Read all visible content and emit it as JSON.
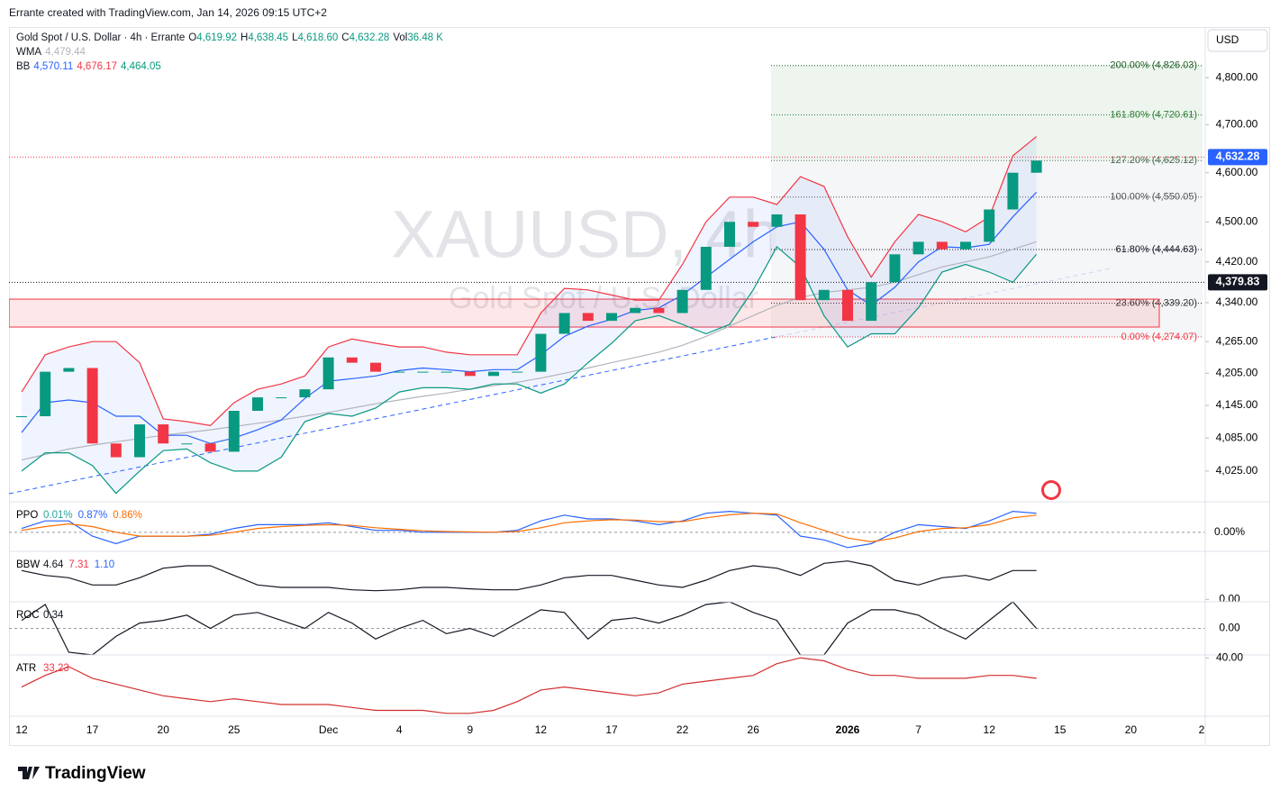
{
  "header": "Errante created with TradingView.com, Jan 14, 2026 09:15 UTC+2",
  "currency_button": "USD",
  "watermark": {
    "symbol": "XAUUSD, 4h",
    "description": "Gold Spot / U.S. Dollar"
  },
  "footer_logo": "TradingView",
  "chart_data": [
    {
      "type": "candlestick",
      "title": "Gold Spot / U.S. Dollar · 4h · Errante",
      "ohlc": [
        {
          "key": "O",
          "value": "4,619.92"
        },
        {
          "key": "H",
          "value": "4,638.45"
        },
        {
          "key": "L",
          "value": "4,618.60"
        },
        {
          "key": "C",
          "value": "4,632.28"
        },
        {
          "key": "Vol",
          "value": "36.48 K"
        }
      ],
      "categories": [
        "12",
        null,
        null,
        "17",
        null,
        null,
        "20",
        null,
        null,
        "25",
        null,
        null,
        null,
        "Dec",
        null,
        null,
        "4",
        null,
        null,
        "9",
        null,
        null,
        "12",
        null,
        null,
        "17",
        null,
        null,
        "22",
        null,
        null,
        "26",
        null,
        null,
        null,
        "2026",
        null,
        null,
        "7",
        null,
        null,
        "12",
        null,
        null,
        "15",
        null,
        null,
        "20",
        null,
        null,
        "2"
      ],
      "values": [
        4125,
        4208,
        4215,
        4075,
        4050,
        4110,
        4075,
        4075,
        4060,
        4135,
        4160,
        4160,
        4175,
        4235,
        4225,
        4208,
        4208,
        4208,
        4208,
        4200,
        4208,
        4208,
        4280,
        4320,
        4305,
        4320,
        4330,
        4320,
        4365,
        4450,
        4500,
        4490,
        4515,
        4345,
        4365,
        4305,
        4380,
        4435,
        4460,
        4445,
        4460,
        4525,
        4600,
        4625,
        null,
        null,
        null,
        null,
        null,
        null,
        null
      ],
      "color_up": "#089981",
      "color_down": "#f23645",
      "log_scale": true,
      "ylim": [
        3970,
        4910
      ],
      "yticks": [
        {
          "value": 4800,
          "label": "4,800.00"
        },
        {
          "value": 4700,
          "label": "4,700.00"
        },
        {
          "value": 4600,
          "label": "4,600.00"
        },
        {
          "value": 4500,
          "label": "4,500.00"
        },
        {
          "value": 4420,
          "label": "4,420.00"
        },
        {
          "value": 4340,
          "label": "4,340.00"
        },
        {
          "value": 4265,
          "label": "4,265.00"
        },
        {
          "value": 4205,
          "label": "4,205.00"
        },
        {
          "value": 4145,
          "label": "4,145.00"
        },
        {
          "value": 4085,
          "label": "4,085.00"
        },
        {
          "value": 4025,
          "label": "4,025.00"
        }
      ],
      "indicators": [
        {
          "name": "WMA",
          "series": [
            {
              "label": "4,479.44",
              "color": "#b2b5be",
              "values": [
                4045,
                4055,
                4065,
                4072,
                4078,
                4084,
                4090,
                4095,
                4100,
                4106,
                4112,
                4118,
                4125,
                4132,
                4140,
                4148,
                4155,
                4162,
                4168,
                4175,
                4182,
                4188,
                4196,
                4205,
                4215,
                4225,
                4235,
                4245,
                4258,
                4275,
                4295,
                4315,
                4335,
                4350,
                4360,
                4365,
                4370,
                4380,
                4395,
                4410,
                4420,
                4430,
                4445,
                4460,
                null,
                null,
                null,
                null,
                null,
                null,
                null
              ]
            }
          ]
        },
        {
          "name": "BB",
          "series": [
            {
              "label": "4,570.11",
              "color": "#2962ff",
              "values": [
                4095,
                4150,
                4155,
                4150,
                4125,
                4125,
                4090,
                4090,
                4075,
                4085,
                4100,
                4118,
                4158,
                4190,
                4195,
                4200,
                4210,
                4215,
                4212,
                4208,
                4212,
                4212,
                4240,
                4275,
                4295,
                4308,
                4325,
                4330,
                4355,
                4390,
                4425,
                4460,
                4490,
                4500,
                4445,
                4365,
                4335,
                4370,
                4420,
                4450,
                4448,
                4455,
                4510,
                4560,
                null,
                null,
                null,
                null,
                null,
                null,
                null
              ]
            },
            {
              "label": "4,676.17",
              "color": "#f23645",
              "values": [
                4170,
                4240,
                4255,
                4265,
                4265,
                4225,
                4120,
                4115,
                4108,
                4150,
                4175,
                4185,
                4200,
                4255,
                4270,
                4262,
                4255,
                4255,
                4245,
                4240,
                4240,
                4240,
                4320,
                4368,
                4365,
                4355,
                4345,
                4345,
                4415,
                4500,
                4550,
                4550,
                4535,
                4592,
                4572,
                4470,
                4390,
                4460,
                4515,
                4500,
                4480,
                4510,
                4635,
                4675,
                null,
                null,
                null,
                null,
                null,
                null,
                null
              ]
            },
            {
              "label": "4,464.05",
              "color": "#089981",
              "values": [
                4025,
                4058,
                4058,
                4035,
                3985,
                4025,
                4062,
                4065,
                4040,
                4025,
                4025,
                4050,
                4115,
                4130,
                4125,
                4140,
                4170,
                4178,
                4178,
                4175,
                4185,
                4185,
                4168,
                4185,
                4225,
                4262,
                4305,
                4315,
                4298,
                4280,
                4298,
                4365,
                4450,
                4410,
                4315,
                4255,
                4280,
                4280,
                4330,
                4400,
                4415,
                4400,
                4380,
                4435,
                null,
                null,
                null,
                null,
                null,
                null,
                null
              ]
            }
          ]
        }
      ],
      "fib": [
        {
          "value": 4826.03,
          "label": "200.00% (4,826.03)",
          "color": "#1b5e20"
        },
        {
          "value": 4720.61,
          "label": "161.80% (4,720.61)",
          "color": "#2e7d32"
        },
        {
          "value": 4625.12,
          "label": "127.20% (4,625.12)",
          "color": "#4a6b50"
        },
        {
          "value": 4550.05,
          "label": "100.00% (4,550.05)",
          "color": "#555"
        },
        {
          "value": 4444.63,
          "label": "61.80% (4,444.63)",
          "color": "#131722"
        },
        {
          "value": 4339.2,
          "label": "23.60% (4,339.20)",
          "color": "#333"
        },
        {
          "value": 4274.07,
          "label": "0.00% (4,274.07)",
          "color": "#f23645"
        }
      ],
      "zone": [
        4293,
        4347
      ],
      "price_lines": [
        {
          "value": 4632.28,
          "label": "4,632.28",
          "color": "#2962ff",
          "line_color": "#f23645"
        },
        {
          "value": 4379.83,
          "label": "4,379.83",
          "color": "#131722",
          "line_color": "#131722"
        }
      ]
    },
    {
      "type": "line",
      "name": "PPO",
      "legend": [
        {
          "label": "0.01%",
          "color": "#26a69a"
        },
        {
          "label": "0.87%",
          "color": "#2962ff"
        },
        {
          "label": "0.86%",
          "color": "#ff6d00"
        }
      ],
      "ylim": [
        -0.5,
        0.8
      ],
      "yticks": [
        {
          "value": 0,
          "label": "0.00%"
        }
      ],
      "grid": true,
      "series": [
        {
          "color": "#2962ff",
          "values": [
            0.1,
            0.3,
            0.3,
            -0.1,
            -0.3,
            -0.1,
            -0.1,
            -0.1,
            -0.05,
            0.1,
            0.2,
            0.2,
            0.2,
            0.25,
            0.15,
            0.05,
            0.05,
            0.0,
            0.0,
            0.0,
            0.0,
            0.05,
            0.3,
            0.45,
            0.35,
            0.35,
            0.3,
            0.2,
            0.3,
            0.5,
            0.55,
            0.5,
            0.45,
            -0.1,
            -0.2,
            -0.4,
            -0.3,
            0.0,
            0.2,
            0.15,
            0.1,
            0.3,
            0.55,
            0.5,
            null,
            null,
            null,
            null,
            null,
            null,
            null
          ]
        },
        {
          "color": "#ff6d00",
          "values": [
            0.05,
            0.15,
            0.22,
            0.15,
            0.0,
            -0.1,
            -0.1,
            -0.1,
            -0.08,
            0.0,
            0.1,
            0.15,
            0.18,
            0.2,
            0.18,
            0.12,
            0.08,
            0.04,
            0.02,
            0.01,
            0.0,
            0.02,
            0.12,
            0.25,
            0.3,
            0.33,
            0.32,
            0.28,
            0.28,
            0.38,
            0.46,
            0.5,
            0.48,
            0.25,
            0.05,
            -0.15,
            -0.25,
            -0.15,
            0.02,
            0.1,
            0.12,
            0.2,
            0.38,
            0.45,
            null,
            null,
            null,
            null,
            null,
            null,
            null
          ]
        }
      ]
    },
    {
      "type": "line",
      "name": "BBW",
      "legend": [
        {
          "label": "4.64",
          "color": "#131722"
        },
        {
          "label": "7.31",
          "color": "#f23645"
        },
        {
          "label": "1.10",
          "color": "#2962ff"
        }
      ],
      "ylim": [
        -0.5,
        10
      ],
      "yticks": [
        {
          "value": 0,
          "label": "0.00"
        }
      ],
      "grid": false,
      "series": [
        {
          "color": "#131722",
          "values": [
            6,
            5,
            4.5,
            3,
            3,
            4.5,
            6.5,
            7,
            7,
            5,
            3,
            2.5,
            2.5,
            2.5,
            2,
            1.8,
            2,
            2.5,
            2.5,
            2.2,
            2,
            2,
            3,
            4.5,
            5,
            5,
            4,
            3,
            2.5,
            4,
            6,
            7,
            6.5,
            5,
            7.5,
            8,
            7,
            4,
            3,
            4.5,
            5,
            4,
            6,
            6,
            null,
            null,
            null,
            null,
            null,
            null,
            null
          ]
        }
      ]
    },
    {
      "type": "line",
      "name": "ROC",
      "legend": [
        {
          "label": "0.34",
          "color": "#131722"
        }
      ],
      "ylim": [
        -1,
        1
      ],
      "yticks": [
        {
          "value": 0,
          "label": "0.00"
        }
      ],
      "grid": true,
      "series": [
        {
          "color": "#131722",
          "values": [
            0.3,
            0.9,
            -0.9,
            -1,
            -0.3,
            0.2,
            0.3,
            0.5,
            0,
            0.5,
            0.6,
            0.3,
            0,
            0.6,
            0.2,
            -0.4,
            0,
            0.3,
            -0.2,
            0,
            -0.3,
            0.2,
            0.7,
            0.6,
            -0.4,
            0.3,
            0.4,
            0.2,
            0.5,
            0.9,
            1,
            0.6,
            0.3,
            -1,
            -1,
            0.2,
            0.7,
            0.7,
            0.5,
            0,
            -0.4,
            0.3,
            1,
            0,
            null,
            null,
            null,
            null,
            null,
            null,
            null
          ]
        }
      ]
    },
    {
      "type": "line",
      "name": "ATR",
      "legend": [
        {
          "label": "33.23",
          "color": "#f23645"
        }
      ],
      "ylim": [
        20,
        41
      ],
      "yticks": [
        {
          "value": 40,
          "label": "40.00"
        }
      ],
      "grid": false,
      "series": [
        {
          "color": "#d32f2f",
          "values": [
            30,
            34,
            37,
            33,
            31,
            29,
            27,
            26,
            25,
            26,
            25,
            24,
            24,
            24,
            23,
            22,
            22,
            22,
            21,
            21,
            22,
            25,
            29,
            30,
            29,
            28,
            27,
            28,
            31,
            32,
            33,
            34,
            38,
            40,
            39,
            36,
            34,
            34,
            33,
            33,
            33,
            34,
            34,
            33,
            null,
            null,
            null,
            null,
            null,
            null,
            null
          ]
        }
      ]
    }
  ]
}
